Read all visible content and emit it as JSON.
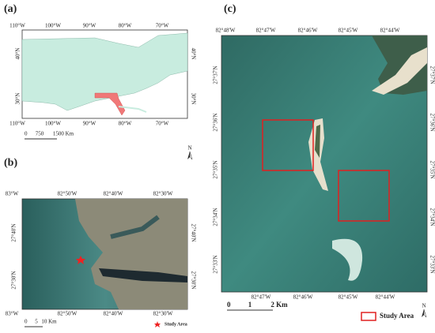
{
  "panels": [
    {
      "label": "(a)",
      "lon_top": [
        "110°W",
        "100°W",
        "90°W",
        "80°W",
        "70°W"
      ],
      "lon_bottom": [
        "110°W",
        "100°W",
        "90°W",
        "80°W",
        "70°W"
      ],
      "lat": [
        "40°N",
        "30°N"
      ],
      "scale": [
        "0",
        "750",
        "1500 Km"
      ],
      "north": "N"
    },
    {
      "label": "(b)",
      "lon_top": [
        "83°W",
        "82°50'W",
        "82°40'W",
        "82°30'W"
      ],
      "lon_bottom": [
        "83°W",
        "82°50'W",
        "82°40'W",
        "82°30'W"
      ],
      "lat": [
        "27°40'N",
        "27°30'N"
      ],
      "scale": [
        "0",
        "5",
        "10 Km"
      ],
      "legend": "Study Area"
    },
    {
      "label": "(c)",
      "lon_top": [
        "82°48'W",
        "82°47'W",
        "82°46'W",
        "82°45'W",
        "82°44'W"
      ],
      "lon_bottom": [
        "82°47'W",
        "82°46'W",
        "82°45'W",
        "82°44'W"
      ],
      "lat": [
        "27°37'N",
        "27°36'N",
        "27°35'N",
        "27°34'N",
        "27°33'N"
      ],
      "scale": [
        "0",
        "1",
        "2 Km"
      ],
      "legend": "Study Area",
      "north": "N"
    }
  ]
}
